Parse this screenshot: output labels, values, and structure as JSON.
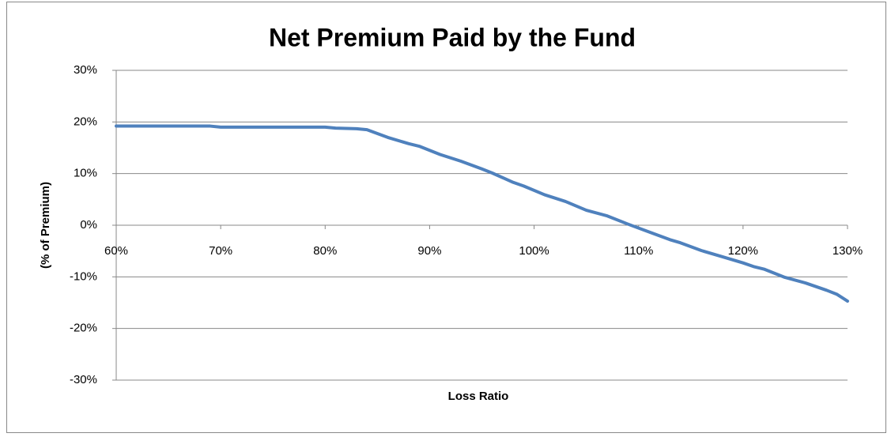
{
  "chart_data": {
    "type": "line",
    "title": "Net Premium Paid by the Fund",
    "xlabel": "Loss Ratio",
    "ylabel": "(% of Premium)",
    "x": [
      60,
      65,
      69,
      70,
      75,
      80,
      81,
      83,
      84,
      86,
      88,
      89,
      91,
      93,
      95,
      96,
      98,
      99,
      101,
      103,
      105,
      107,
      109,
      111,
      113,
      114,
      116,
      118,
      120,
      121,
      122,
      124,
      126,
      128,
      129,
      130
    ],
    "series": [
      {
        "color": "#4f81bd",
        "values": [
          19.2,
          19.2,
          19.2,
          19.0,
          19.0,
          19.0,
          18.8,
          18.7,
          18.5,
          17.0,
          15.8,
          15.3,
          13.7,
          12.4,
          10.9,
          10.1,
          8.3,
          7.6,
          5.9,
          4.6,
          2.9,
          1.8,
          0.2,
          -1.3,
          -2.8,
          -3.4,
          -4.9,
          -6.1,
          -7.3,
          -8.0,
          -8.5,
          -10.1,
          -11.2,
          -12.6,
          -13.4,
          -14.7
        ]
      }
    ],
    "xlim": [
      60,
      130
    ],
    "xticks": [
      {
        "value": 60,
        "label": "60%"
      },
      {
        "value": 70,
        "label": "70%"
      },
      {
        "value": 80,
        "label": "80%"
      },
      {
        "value": 90,
        "label": "90%"
      },
      {
        "value": 100,
        "label": "100%"
      },
      {
        "value": 110,
        "label": "110%"
      },
      {
        "value": 120,
        "label": "120%"
      },
      {
        "value": 130,
        "label": "130%"
      }
    ],
    "ylim": [
      -30,
      30
    ],
    "yticks": [
      {
        "value": -30,
        "label": "-30%"
      },
      {
        "value": -20,
        "label": "-20%"
      },
      {
        "value": -10,
        "label": "-10%"
      },
      {
        "value": 0,
        "label": "0%"
      },
      {
        "value": 10,
        "label": "10%"
      },
      {
        "value": 20,
        "label": "20%"
      },
      {
        "value": 30,
        "label": "30%"
      }
    ],
    "grid": true
  }
}
